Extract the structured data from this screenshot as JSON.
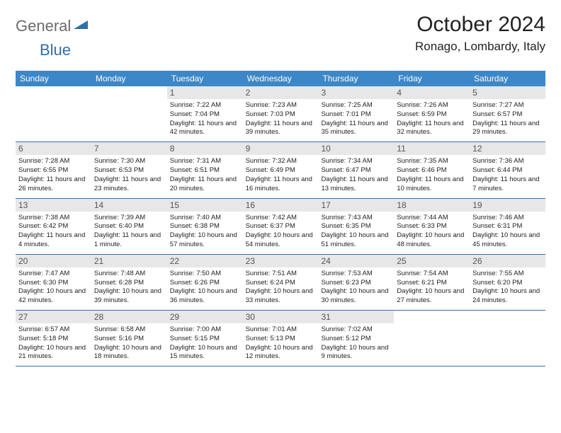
{
  "logo": {
    "general": "General",
    "blue": "Blue"
  },
  "header": {
    "month_title": "October 2024",
    "location": "Ronago, Lombardy, Italy"
  },
  "colors": {
    "header_bg": "#3b87c8",
    "week_border": "#3b6fa0",
    "daynum_bg": "#e7e7e7",
    "logo_gray": "#6b6b6b",
    "logo_blue": "#2f6fa8"
  },
  "weekdays": [
    "Sunday",
    "Monday",
    "Tuesday",
    "Wednesday",
    "Thursday",
    "Friday",
    "Saturday"
  ],
  "weeks": [
    [
      {
        "empty": true
      },
      {
        "empty": true
      },
      {
        "num": "1",
        "sunrise": "Sunrise: 7:22 AM",
        "sunset": "Sunset: 7:04 PM",
        "daylight": "Daylight: 11 hours and 42 minutes."
      },
      {
        "num": "2",
        "sunrise": "Sunrise: 7:23 AM",
        "sunset": "Sunset: 7:03 PM",
        "daylight": "Daylight: 11 hours and 39 minutes."
      },
      {
        "num": "3",
        "sunrise": "Sunrise: 7:25 AM",
        "sunset": "Sunset: 7:01 PM",
        "daylight": "Daylight: 11 hours and 35 minutes."
      },
      {
        "num": "4",
        "sunrise": "Sunrise: 7:26 AM",
        "sunset": "Sunset: 6:59 PM",
        "daylight": "Daylight: 11 hours and 32 minutes."
      },
      {
        "num": "5",
        "sunrise": "Sunrise: 7:27 AM",
        "sunset": "Sunset: 6:57 PM",
        "daylight": "Daylight: 11 hours and 29 minutes."
      }
    ],
    [
      {
        "num": "6",
        "sunrise": "Sunrise: 7:28 AM",
        "sunset": "Sunset: 6:55 PM",
        "daylight": "Daylight: 11 hours and 26 minutes."
      },
      {
        "num": "7",
        "sunrise": "Sunrise: 7:30 AM",
        "sunset": "Sunset: 6:53 PM",
        "daylight": "Daylight: 11 hours and 23 minutes."
      },
      {
        "num": "8",
        "sunrise": "Sunrise: 7:31 AM",
        "sunset": "Sunset: 6:51 PM",
        "daylight": "Daylight: 11 hours and 20 minutes."
      },
      {
        "num": "9",
        "sunrise": "Sunrise: 7:32 AM",
        "sunset": "Sunset: 6:49 PM",
        "daylight": "Daylight: 11 hours and 16 minutes."
      },
      {
        "num": "10",
        "sunrise": "Sunrise: 7:34 AM",
        "sunset": "Sunset: 6:47 PM",
        "daylight": "Daylight: 11 hours and 13 minutes."
      },
      {
        "num": "11",
        "sunrise": "Sunrise: 7:35 AM",
        "sunset": "Sunset: 6:46 PM",
        "daylight": "Daylight: 11 hours and 10 minutes."
      },
      {
        "num": "12",
        "sunrise": "Sunrise: 7:36 AM",
        "sunset": "Sunset: 6:44 PM",
        "daylight": "Daylight: 11 hours and 7 minutes."
      }
    ],
    [
      {
        "num": "13",
        "sunrise": "Sunrise: 7:38 AM",
        "sunset": "Sunset: 6:42 PM",
        "daylight": "Daylight: 11 hours and 4 minutes."
      },
      {
        "num": "14",
        "sunrise": "Sunrise: 7:39 AM",
        "sunset": "Sunset: 6:40 PM",
        "daylight": "Daylight: 11 hours and 1 minute."
      },
      {
        "num": "15",
        "sunrise": "Sunrise: 7:40 AM",
        "sunset": "Sunset: 6:38 PM",
        "daylight": "Daylight: 10 hours and 57 minutes."
      },
      {
        "num": "16",
        "sunrise": "Sunrise: 7:42 AM",
        "sunset": "Sunset: 6:37 PM",
        "daylight": "Daylight: 10 hours and 54 minutes."
      },
      {
        "num": "17",
        "sunrise": "Sunrise: 7:43 AM",
        "sunset": "Sunset: 6:35 PM",
        "daylight": "Daylight: 10 hours and 51 minutes."
      },
      {
        "num": "18",
        "sunrise": "Sunrise: 7:44 AM",
        "sunset": "Sunset: 6:33 PM",
        "daylight": "Daylight: 10 hours and 48 minutes."
      },
      {
        "num": "19",
        "sunrise": "Sunrise: 7:46 AM",
        "sunset": "Sunset: 6:31 PM",
        "daylight": "Daylight: 10 hours and 45 minutes."
      }
    ],
    [
      {
        "num": "20",
        "sunrise": "Sunrise: 7:47 AM",
        "sunset": "Sunset: 6:30 PM",
        "daylight": "Daylight: 10 hours and 42 minutes."
      },
      {
        "num": "21",
        "sunrise": "Sunrise: 7:48 AM",
        "sunset": "Sunset: 6:28 PM",
        "daylight": "Daylight: 10 hours and 39 minutes."
      },
      {
        "num": "22",
        "sunrise": "Sunrise: 7:50 AM",
        "sunset": "Sunset: 6:26 PM",
        "daylight": "Daylight: 10 hours and 36 minutes."
      },
      {
        "num": "23",
        "sunrise": "Sunrise: 7:51 AM",
        "sunset": "Sunset: 6:24 PM",
        "daylight": "Daylight: 10 hours and 33 minutes."
      },
      {
        "num": "24",
        "sunrise": "Sunrise: 7:53 AM",
        "sunset": "Sunset: 6:23 PM",
        "daylight": "Daylight: 10 hours and 30 minutes."
      },
      {
        "num": "25",
        "sunrise": "Sunrise: 7:54 AM",
        "sunset": "Sunset: 6:21 PM",
        "daylight": "Daylight: 10 hours and 27 minutes."
      },
      {
        "num": "26",
        "sunrise": "Sunrise: 7:55 AM",
        "sunset": "Sunset: 6:20 PM",
        "daylight": "Daylight: 10 hours and 24 minutes."
      }
    ],
    [
      {
        "num": "27",
        "sunrise": "Sunrise: 6:57 AM",
        "sunset": "Sunset: 5:18 PM",
        "daylight": "Daylight: 10 hours and 21 minutes."
      },
      {
        "num": "28",
        "sunrise": "Sunrise: 6:58 AM",
        "sunset": "Sunset: 5:16 PM",
        "daylight": "Daylight: 10 hours and 18 minutes."
      },
      {
        "num": "29",
        "sunrise": "Sunrise: 7:00 AM",
        "sunset": "Sunset: 5:15 PM",
        "daylight": "Daylight: 10 hours and 15 minutes."
      },
      {
        "num": "30",
        "sunrise": "Sunrise: 7:01 AM",
        "sunset": "Sunset: 5:13 PM",
        "daylight": "Daylight: 10 hours and 12 minutes."
      },
      {
        "num": "31",
        "sunrise": "Sunrise: 7:02 AM",
        "sunset": "Sunset: 5:12 PM",
        "daylight": "Daylight: 10 hours and 9 minutes."
      },
      {
        "empty": true
      },
      {
        "empty": true
      }
    ]
  ]
}
